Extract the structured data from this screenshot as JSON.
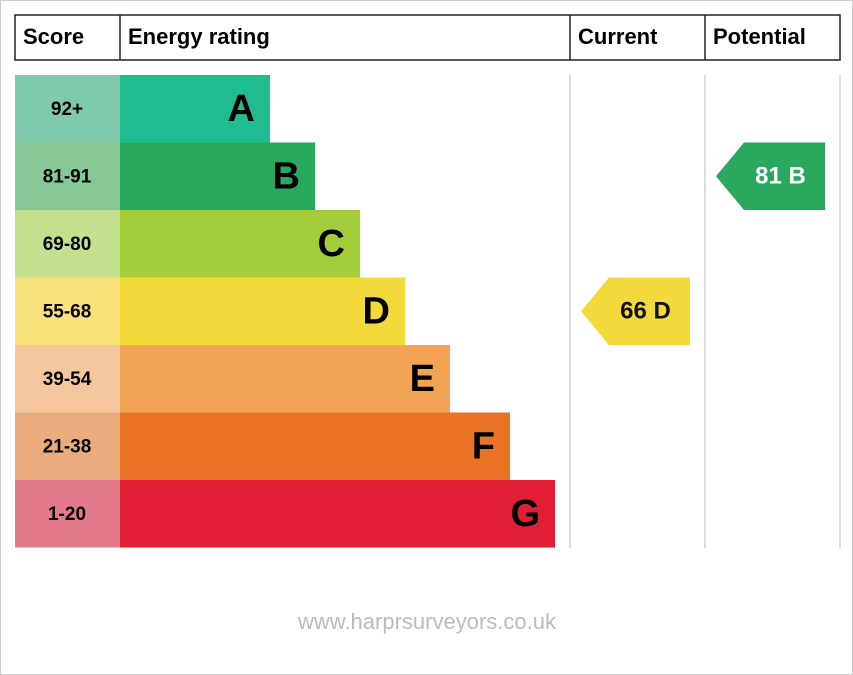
{
  "header": {
    "score": "Score",
    "energy_rating": "Energy rating",
    "current": "Current",
    "potential": "Potential"
  },
  "bands": [
    {
      "score": "92+",
      "letter": "A",
      "color": "#1ebc8e",
      "score_color": "#7fcaaa"
    },
    {
      "score": "81-91",
      "letter": "B",
      "color": "#2aa85e",
      "score_color": "#86c896"
    },
    {
      "score": "69-80",
      "letter": "C",
      "color": "#a4cd3a",
      "score_color": "#c3e08e"
    },
    {
      "score": "55-68",
      "letter": "D",
      "color": "#f4d93a",
      "score_color": "#f9e27a"
    },
    {
      "score": "39-54",
      "letter": "E",
      "color": "#f3a354",
      "score_color": "#f6c69e"
    },
    {
      "score": "21-38",
      "letter": "F",
      "color": "#ea7326",
      "score_color": "#eaac7c"
    },
    {
      "score": "1-20",
      "letter": "G",
      "color": "#e21e35",
      "score_color": "#e27a8c"
    }
  ],
  "current": {
    "score": 66,
    "rating": "D"
  },
  "potential": {
    "score": 81,
    "rating": "B"
  },
  "footer": "www.harprsurveyors.co.uk"
}
